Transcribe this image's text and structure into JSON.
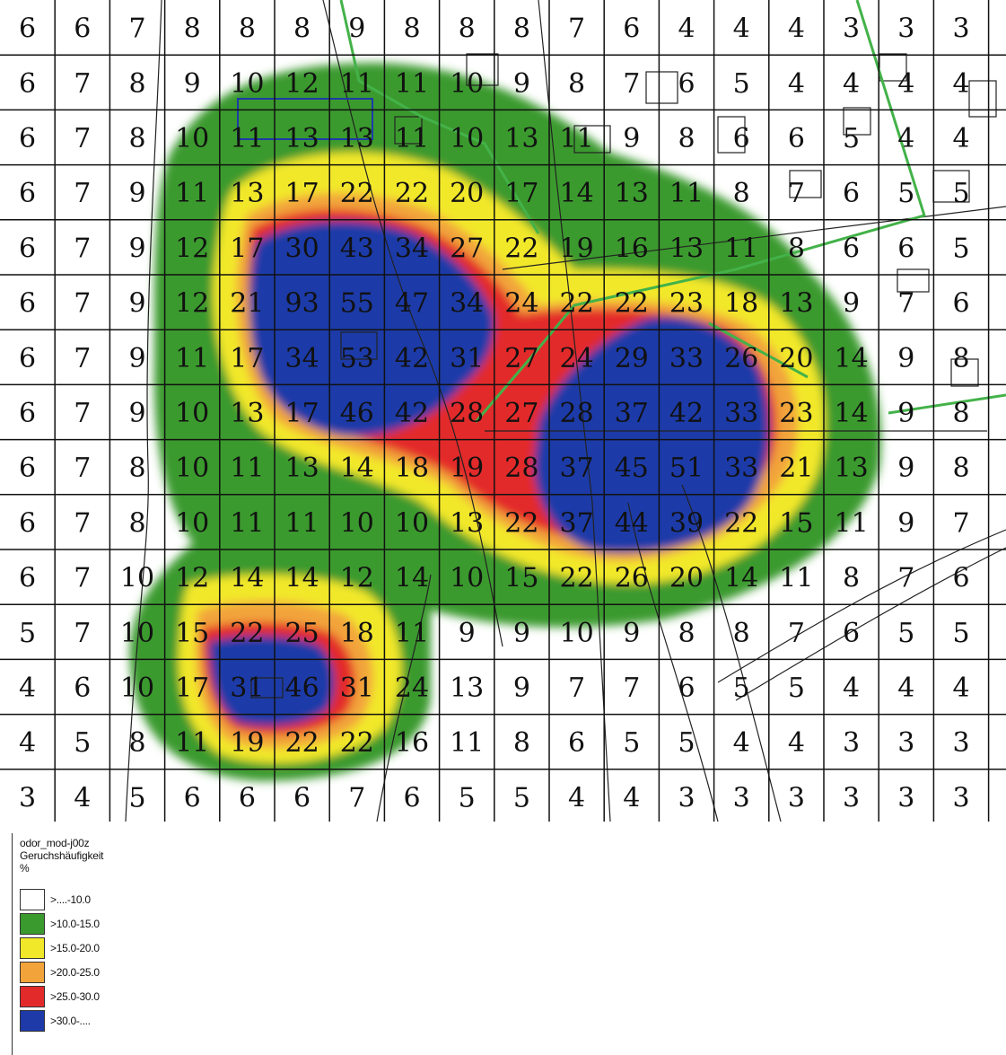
{
  "map": {
    "grid": [
      [
        "6",
        "6",
        "7",
        "8",
        "8",
        "8",
        "9",
        "8",
        "8",
        "8",
        "7",
        "6",
        "4",
        "4",
        "4",
        "3",
        "3",
        "3"
      ],
      [
        "6",
        "7",
        "8",
        "9",
        "10",
        "12",
        "11",
        "11",
        "10",
        "9",
        "8",
        "7",
        "6",
        "5",
        "4",
        "4",
        "4",
        "4"
      ],
      [
        "6",
        "7",
        "8",
        "10",
        "11",
        "13",
        "13",
        "11",
        "10",
        "13",
        "11",
        "9",
        "8",
        "6",
        "6",
        "5",
        "4",
        "4"
      ],
      [
        "6",
        "7",
        "9",
        "11",
        "13",
        "17",
        "22",
        "22",
        "20",
        "17",
        "14",
        "13",
        "11",
        "8",
        "7",
        "6",
        "5",
        "5"
      ],
      [
        "6",
        "7",
        "9",
        "12",
        "17",
        "30",
        "43",
        "34",
        "27",
        "22",
        "19",
        "16",
        "13",
        "11",
        "8",
        "6",
        "6",
        "5"
      ],
      [
        "6",
        "7",
        "9",
        "12",
        "21",
        "93",
        "55",
        "47",
        "34",
        "24",
        "22",
        "22",
        "23",
        "18",
        "13",
        "9",
        "7",
        "6"
      ],
      [
        "6",
        "7",
        "9",
        "11",
        "17",
        "34",
        "53",
        "42",
        "31",
        "27",
        "24",
        "29",
        "33",
        "26",
        "20",
        "14",
        "9",
        "8"
      ],
      [
        "6",
        "7",
        "9",
        "10",
        "13",
        "17",
        "46",
        "42",
        "28",
        "27",
        "28",
        "37",
        "42",
        "33",
        "23",
        "14",
        "9",
        "8"
      ],
      [
        "6",
        "7",
        "8",
        "10",
        "11",
        "13",
        "14",
        "18",
        "19",
        "28",
        "37",
        "45",
        "51",
        "33",
        "21",
        "13",
        "9",
        "8"
      ],
      [
        "6",
        "7",
        "8",
        "10",
        "11",
        "11",
        "10",
        "10",
        "13",
        "22",
        "37",
        "44",
        "39",
        "22",
        "15",
        "11",
        "9",
        "7"
      ],
      [
        "6",
        "7",
        "10",
        "12",
        "14",
        "14",
        "12",
        "14",
        "10",
        "15",
        "22",
        "26",
        "20",
        "14",
        "11",
        "8",
        "7",
        "6"
      ],
      [
        "5",
        "7",
        "10",
        "15",
        "22",
        "25",
        "18",
        "11",
        "9",
        "9",
        "10",
        "9",
        "8",
        "8",
        "7",
        "6",
        "5",
        "5"
      ],
      [
        "4",
        "6",
        "10",
        "17",
        "31",
        "46",
        "31",
        "24",
        "13",
        "9",
        "7",
        "7",
        "6",
        "5",
        "5",
        "4",
        "4",
        "4"
      ],
      [
        "4",
        "5",
        "8",
        "11",
        "19",
        "22",
        "22",
        "16",
        "11",
        "8",
        "6",
        "5",
        "5",
        "4",
        "4",
        "3",
        "3",
        "3"
      ],
      [
        "3",
        "4",
        "5",
        "6",
        "6",
        "6",
        "7",
        "6",
        "5",
        "5",
        "4",
        "4",
        "3",
        "3",
        "3",
        "3",
        "3",
        "3"
      ]
    ]
  },
  "legend": {
    "title_line1": "odor_mod-j00z",
    "title_line2": "Geruchshäufigkeit",
    "title_line3": "%",
    "items": [
      {
        "label": ">....-10.0",
        "color": "#ffffff"
      },
      {
        "label": ">10.0-15.0",
        "color": "#3a9a2e"
      },
      {
        "label": ">15.0-20.0",
        "color": "#f2e82a"
      },
      {
        "label": ">20.0-25.0",
        "color": "#f2a43a"
      },
      {
        "label": ">25.0-30.0",
        "color": "#e32a2a"
      },
      {
        "label": ">30.0-....",
        "color": "#1d3aa8"
      }
    ]
  }
}
